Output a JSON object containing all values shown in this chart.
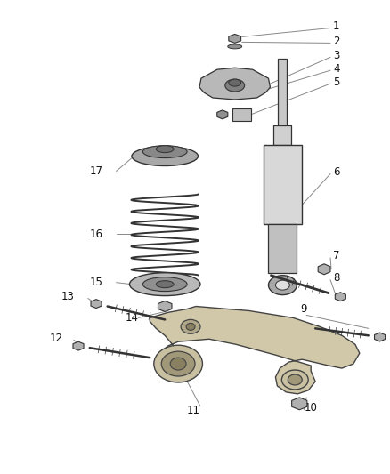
{
  "background_color": "#ffffff",
  "line_color": "#333333",
  "callout_color": "#888888",
  "fig_width": 4.38,
  "fig_height": 5.33,
  "dpi": 100,
  "parts_gray": "#909090",
  "parts_light": "#c8c8c8",
  "parts_dark": "#606060",
  "parts_mid": "#b0b0b0",
  "arm_fill": "#d8d0b8",
  "arm_edge": "#444444"
}
